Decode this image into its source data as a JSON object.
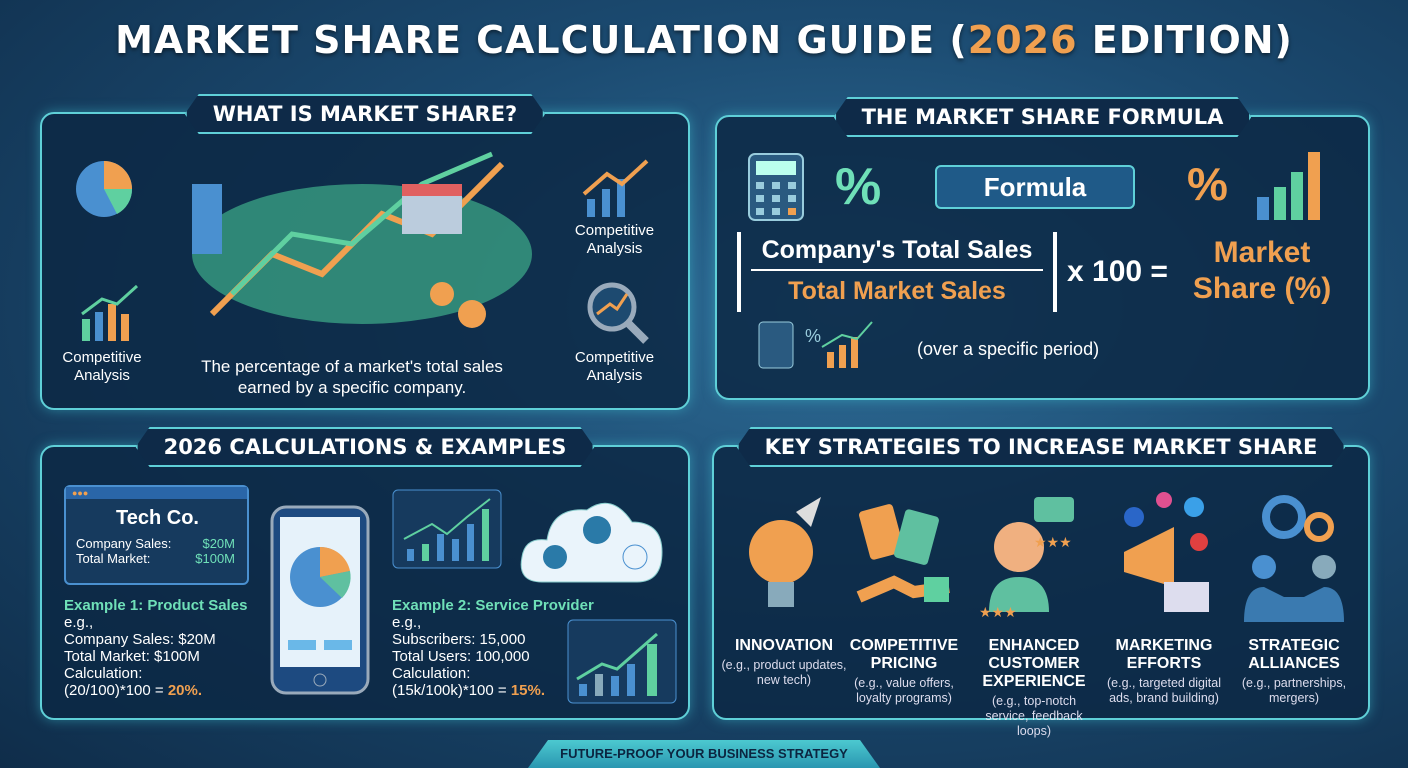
{
  "title": {
    "main": "MARKET SHARE CALCULATION GUIDE (",
    "highlight": "2026",
    "end": " EDITION)"
  },
  "what": {
    "heading": "WHAT IS MARKET SHARE?",
    "label_left": "Competitive Analysis",
    "label_right_top": "Competitive Analysis",
    "label_right_bottom": "Competitive Analysis",
    "definition": "The percentage of a market's total sales earned by a specific company."
  },
  "formula": {
    "heading": "THE MARKET SHARE FORMULA",
    "badge": "Formula",
    "percent": "%",
    "numerator": "Company's Total Sales",
    "denominator": "Total Market Sales",
    "multiplier": "x 100 =",
    "result": "Market Share (%)",
    "note": "(over a specific period)"
  },
  "calc": {
    "heading": "2026 CALCULATIONS & EXAMPLES",
    "card": {
      "company": "Tech Co.",
      "sales_label": "Company Sales:",
      "sales_value": "$20M",
      "market_label": "Total Market:",
      "market_value": "$100M"
    },
    "ex1": {
      "title": "Example 1: Product Sales",
      "eg": "e.g.,",
      "l1": "Company Sales: $20M",
      "l2": "Total Market: $100M",
      "l3": "Calculation:",
      "l4": "(20/100)*100 = ",
      "result": "20%."
    },
    "ex2": {
      "title": "Example 2: Service Provider",
      "eg": "e.g.,",
      "l1": "Subscribers: 15,000",
      "l2": "Total Users: 100,000",
      "l3": "Calculation:",
      "l4": "(15k/100k)*100 = ",
      "result": "15%."
    }
  },
  "strategies": {
    "heading": "KEY STRATEGIES TO INCREASE MARKET SHARE",
    "items": [
      {
        "title": "INNOVATION",
        "desc": "(e.g., product updates, new tech)",
        "icon": "lightbulb-rocket-icon"
      },
      {
        "title": "COMPETITIVE PRICING",
        "desc": "(e.g., value offers, loyalty programs)",
        "icon": "price-tag-icon"
      },
      {
        "title": "ENHANCED CUSTOMER EXPERIENCE",
        "desc": "(e.g., top-notch service, feedback loops)",
        "icon": "customer-service-icon"
      },
      {
        "title": "MARKETING EFFORTS",
        "desc": "(e.g., targeted digital ads, brand building)",
        "icon": "megaphone-icon"
      },
      {
        "title": "STRATEGIC ALLIANCES",
        "desc": "(e.g., partnerships, mergers)",
        "icon": "handshake-gears-icon"
      }
    ]
  },
  "footer": "FUTURE-PROOF YOUR BUSINESS STRATEGY",
  "colors": {
    "accent_teal": "#6fe0b8",
    "accent_orange": "#f0a050",
    "border": "#5fd0d8"
  }
}
